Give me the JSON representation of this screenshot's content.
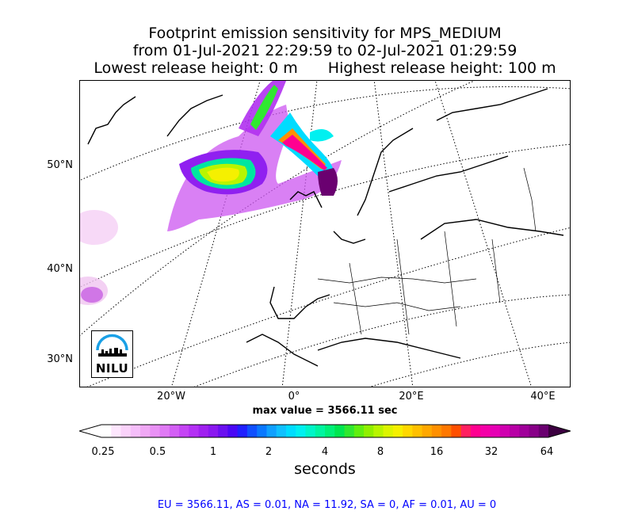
{
  "title": {
    "line1": "Footprint emission sensitivity for MPS_MEDIUM",
    "line2": "from 01-Jul-2021 22:29:59 to 02-Jul-2021 01:29:59",
    "lowest": "Lowest release height: 0 m",
    "highest": "Highest release height: 100 m"
  },
  "map": {
    "lat_labels": [
      "50°N",
      "40°N",
      "30°N"
    ],
    "lon_labels": [
      "20°W",
      "0°",
      "20°E",
      "40°E"
    ],
    "logo_text": "NILU"
  },
  "max_value": "max value = 3566.11 sec",
  "colorbar": {
    "tick_labels": [
      "0.25",
      "0.5",
      "1",
      "2",
      "4",
      "8",
      "16",
      "32",
      "64"
    ],
    "units": "seconds",
    "colors": [
      "#ffffff",
      "#fde6fd",
      "#fad2fa",
      "#f5befa",
      "#f0a8f5",
      "#e991f5",
      "#e07af5",
      "#d35ff5",
      "#c545f5",
      "#b430f5",
      "#a020f0",
      "#8a18f0",
      "#6a10f0",
      "#4a08f5",
      "#2020ff",
      "#1050ff",
      "#0a78ff",
      "#10a0ff",
      "#10c0ff",
      "#00dcff",
      "#00f0f0",
      "#00f5c8",
      "#00f5a0",
      "#00f078",
      "#00e650",
      "#30e830",
      "#60ef10",
      "#90f000",
      "#b8f500",
      "#dcf500",
      "#f5f000",
      "#ffd800",
      "#ffc000",
      "#ffa800",
      "#ff9000",
      "#ff7800",
      "#ff5000",
      "#ff2060",
      "#ff0090",
      "#f500a8",
      "#e600b4",
      "#d000b0",
      "#b800a6",
      "#a0009a",
      "#880088",
      "#6a0070"
    ]
  },
  "stats": "EU = 3566.11,  AS = 0.01,  NA = 11.92,  SA = 0,  AF = 0.01,  AU = 0"
}
